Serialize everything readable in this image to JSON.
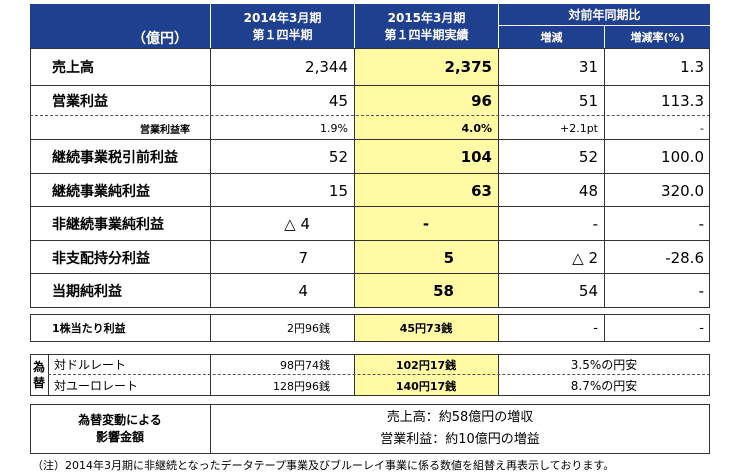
{
  "header": {
    "unit": "（億円）",
    "prev_col_line1": "2014年3月期",
    "prev_col_line2": "第１四半期",
    "curr_col_line1": "2015年3月期",
    "curr_col_line2": "第１四半期実績",
    "yoy_title": "対前年同期比",
    "diff": "増減",
    "rate": "増減率(%)"
  },
  "rows": [
    {
      "label": "売上高",
      "prev": "2,344",
      "curr": "2,375",
      "diff": "31",
      "rate": "1.3"
    },
    {
      "label": "営業利益",
      "prev": "45",
      "curr": "96",
      "diff": "51",
      "rate": "113.3"
    },
    {
      "label": "営業利益率",
      "prev": "1.9%",
      "curr": "4.0%",
      "diff": "+2.1pt",
      "rate": "-"
    },
    {
      "label": "継続事業税引前利益",
      "prev": "52",
      "curr": "104",
      "diff": "52",
      "rate": "100.0"
    },
    {
      "label": "継続事業純利益",
      "prev": "15",
      "curr": "63",
      "diff": "48",
      "rate": "320.0"
    },
    {
      "label": "非継続事業純利益",
      "prev": "△ 4",
      "curr": "-",
      "diff": "-",
      "rate": "-"
    },
    {
      "label": "非支配持分利益",
      "prev": "7",
      "curr": "5",
      "diff": "△ 2",
      "rate": "-28.6"
    },
    {
      "label": "当期純利益",
      "prev": "4",
      "curr": "58",
      "diff": "54",
      "rate": "-"
    }
  ],
  "eps": {
    "label": "1株当たり利益",
    "prev": "2円96銭",
    "curr": "45円73銭",
    "diff": "-",
    "rate": "-"
  },
  "fx": {
    "group_label_1": "為",
    "group_label_2": "替",
    "usd_label": "対ドルレート",
    "usd_prev": "98円74銭",
    "usd_curr": "102円17銭",
    "usd_change": "3.5%の円安",
    "eur_label": "対ユーロレート",
    "eur_prev": "128円96銭",
    "eur_curr": "140円17銭",
    "eur_change": "8.7%の円安"
  },
  "impact": {
    "label_line1": "為替変動による",
    "label_line2": "影響金額",
    "line1": "売上高：約58億円の増収",
    "line2": "営業利益：約10億円の増益"
  },
  "note": "（注）2014年3月期に非継続となったデータテープ事業及びブルーレイ事業に係る数値を組替え再表示しております。"
}
